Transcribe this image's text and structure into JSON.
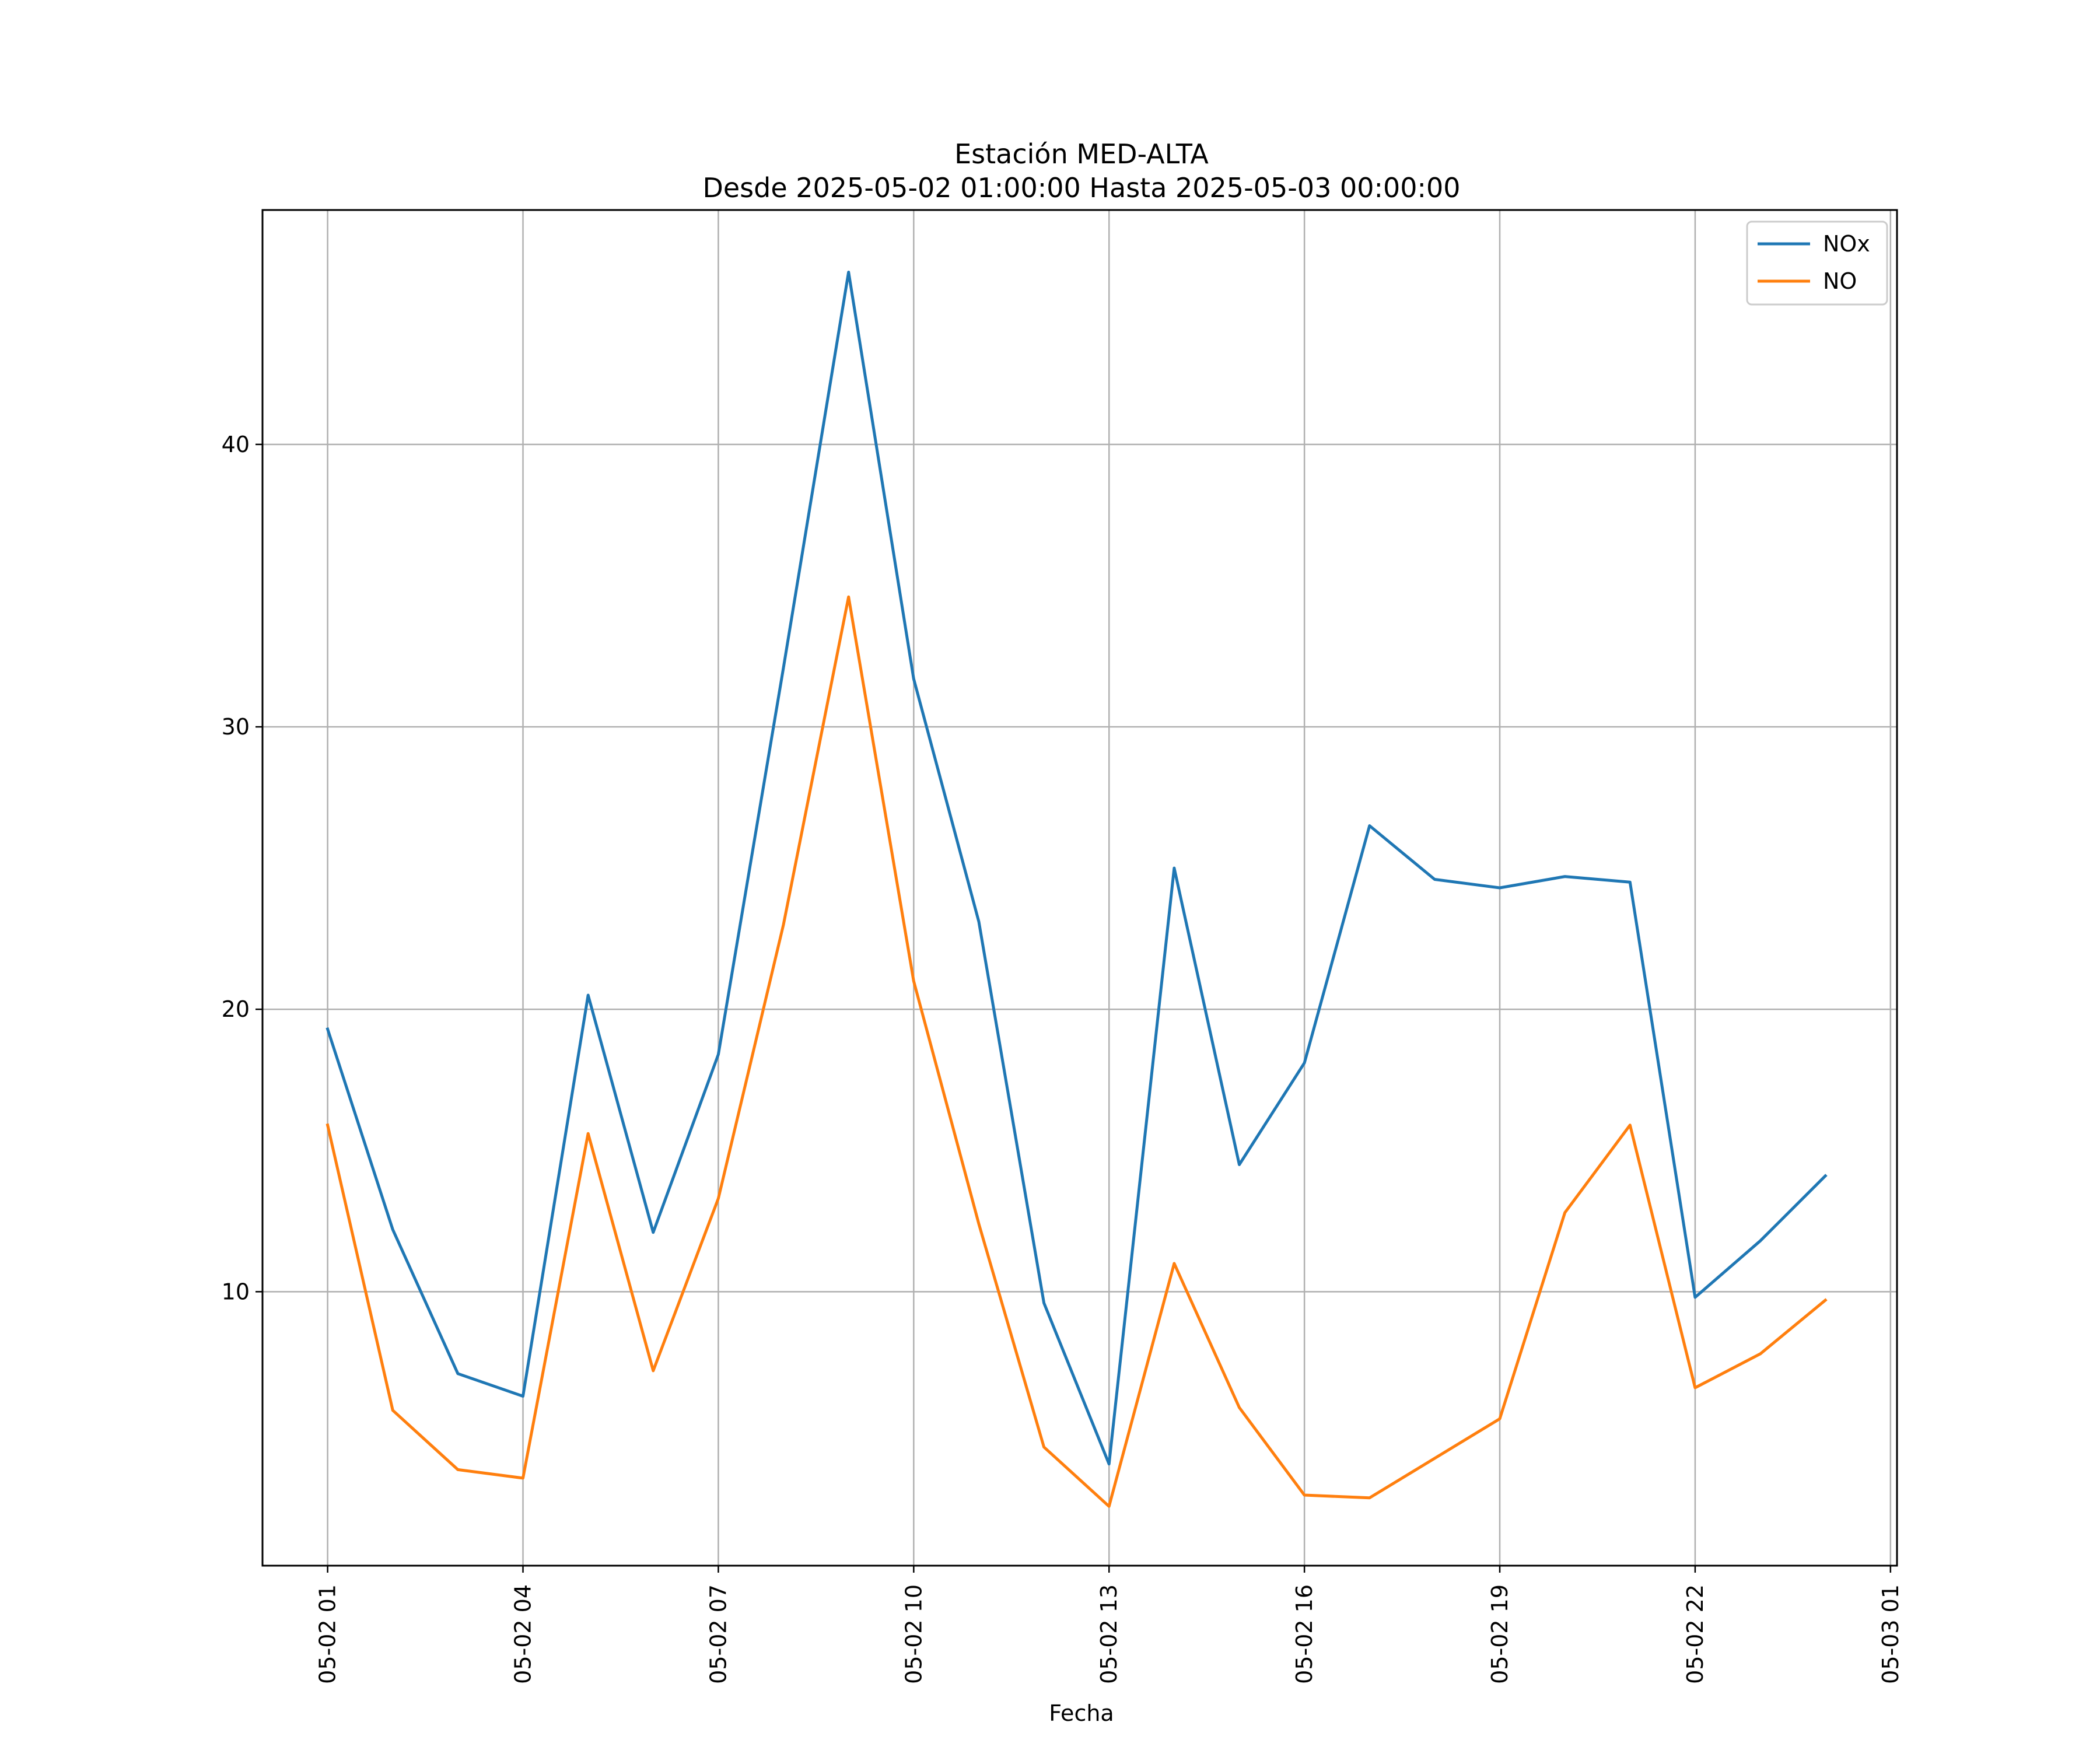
{
  "chart_data": {
    "type": "line",
    "title": "Estación MED-ALTA",
    "subtitle": "Desde 2025-05-02 01:00:00 Hasta 2025-05-03 00:00:00",
    "xlabel": "Fecha",
    "ylabel": "",
    "x": [
      "2025-05-02 01:00",
      "2025-05-02 02:00",
      "2025-05-02 03:00",
      "2025-05-02 04:00",
      "2025-05-02 05:00",
      "2025-05-02 06:00",
      "2025-05-02 07:00",
      "2025-05-02 08:00",
      "2025-05-02 09:00",
      "2025-05-02 10:00",
      "2025-05-02 11:00",
      "2025-05-02 12:00",
      "2025-05-02 13:00",
      "2025-05-02 14:00",
      "2025-05-02 15:00",
      "2025-05-02 16:00",
      "2025-05-02 17:00",
      "2025-05-02 18:00",
      "2025-05-02 19:00",
      "2025-05-02 20:00",
      "2025-05-02 21:00",
      "2025-05-02 22:00",
      "2025-05-02 23:00",
      "2025-05-03 00:00"
    ],
    "xlim": [
      "2025-05-02 00:00",
      "2025-05-03 01:06"
    ],
    "ylim": [
      0.3,
      48.3
    ],
    "xticks": [
      "05-02 01",
      "05-02 04",
      "05-02 07",
      "05-02 10",
      "05-02 13",
      "05-02 16",
      "05-02 19",
      "05-02 22",
      "05-03 01"
    ],
    "yticks": [
      10,
      20,
      30,
      40
    ],
    "grid": true,
    "legend_position": "top-right",
    "series": [
      {
        "name": "NOx",
        "color": "#1f77b4",
        "values": [
          19.3,
          12.2,
          7.1,
          6.3,
          20.5,
          12.1,
          18.4,
          32.1,
          46.1,
          31.7,
          23.1,
          9.6,
          3.9,
          25.0,
          14.5,
          18.1,
          26.5,
          24.6,
          24.3,
          24.7,
          24.5,
          9.8,
          11.8,
          14.1
        ]
      },
      {
        "name": "NO",
        "color": "#ff7f0e",
        "values": [
          15.9,
          5.8,
          3.7,
          3.4,
          15.6,
          7.2,
          13.3,
          23.0,
          34.6,
          21.0,
          12.4,
          4.5,
          2.4,
          11.0,
          5.9,
          2.8,
          2.7,
          4.1,
          5.5,
          12.8,
          15.9,
          6.6,
          7.8,
          9.7
        ]
      }
    ]
  }
}
